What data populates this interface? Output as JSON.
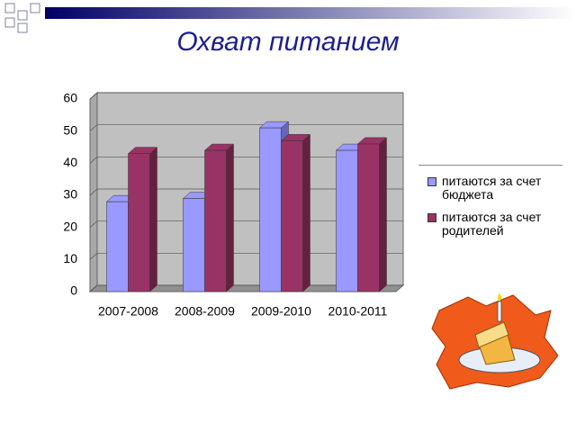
{
  "chart_data": {
    "type": "bar3d",
    "title": "Охват питанием",
    "categories": [
      "2007-2008",
      "2008-2009",
      "2009-2010",
      "2010-2011"
    ],
    "series": [
      {
        "name": "питаются за счет бюджета",
        "color": "#9999ff",
        "side": "#6666bb",
        "values": [
          28,
          29,
          51,
          44
        ]
      },
      {
        "name": "питаются за счет родителей",
        "color": "#993366",
        "side": "#66203f",
        "values": [
          43,
          44,
          47,
          46
        ]
      }
    ],
    "ylim": [
      0,
      60
    ],
    "yticks": [
      0,
      10,
      20,
      30,
      40,
      50,
      60
    ],
    "grid": true,
    "legend": "right"
  }
}
